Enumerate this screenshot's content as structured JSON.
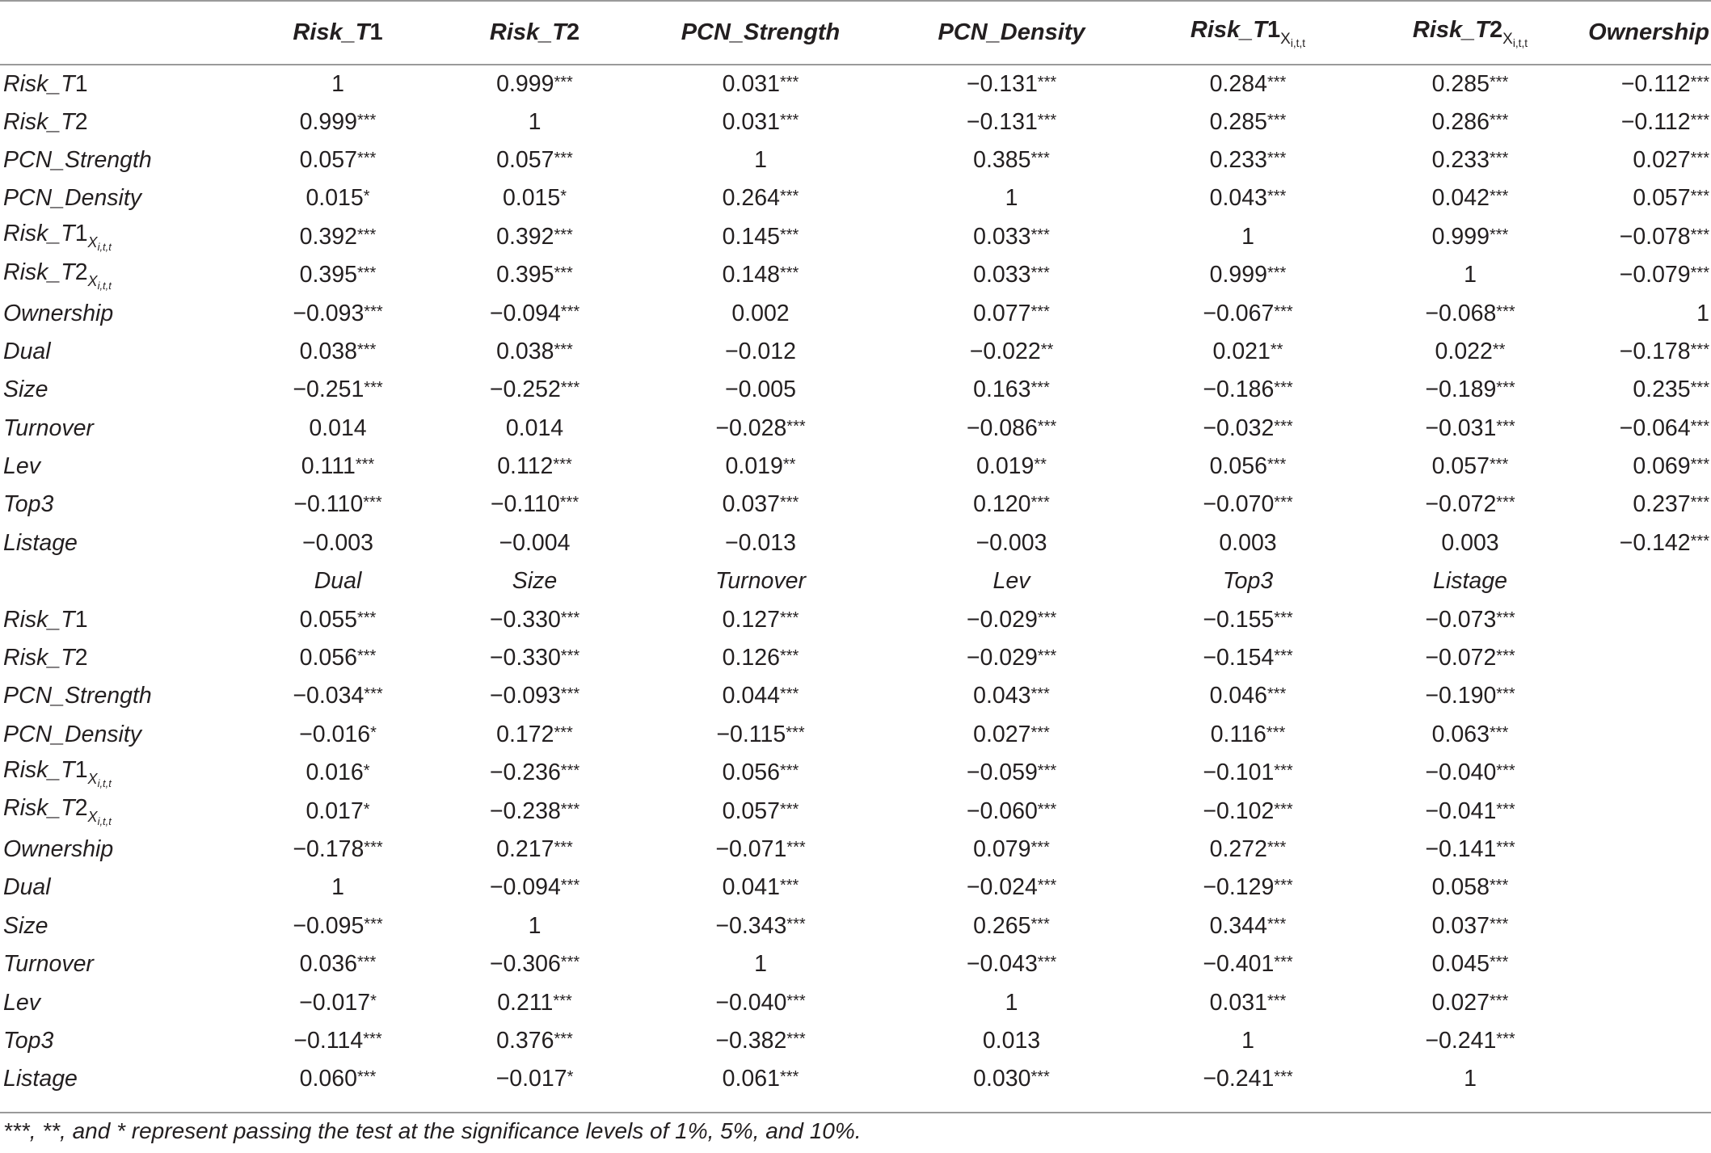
{
  "table": {
    "headers": [
      "",
      "Risk_T1",
      "Risk_T2",
      "PCN_Strength",
      "PCN_Density",
      "Risk_T1X",
      "Risk_T2X",
      "Ownership"
    ],
    "header_subscript": "i,t,t",
    "row_subscript": "i,t,t",
    "rows": [
      [
        "Risk_T1",
        "1",
        "0.999***",
        "0.031***",
        "−0.131***",
        "0.284***",
        "0.285***",
        "−0.112***"
      ],
      [
        "Risk_T2",
        "0.999***",
        "1",
        "0.031***",
        "−0.131***",
        "0.285***",
        "0.286***",
        "−0.112***"
      ],
      [
        "PCN_Strength",
        "0.057***",
        "0.057***",
        "1",
        "0.385***",
        "0.233***",
        "0.233***",
        "0.027***"
      ],
      [
        "PCN_Density",
        "0.015*",
        "0.015*",
        "0.264***",
        "1",
        "0.043***",
        "0.042***",
        "0.057***"
      ],
      [
        "Risk_T1X",
        "0.392***",
        "0.392***",
        "0.145***",
        "0.033***",
        "1",
        "0.999***",
        "−0.078***"
      ],
      [
        "Risk_T2X",
        "0.395***",
        "0.395***",
        "0.148***",
        "0.033***",
        "0.999***",
        "1",
        "−0.079***"
      ],
      [
        "Ownership",
        "−0.093***",
        "−0.094***",
        "0.002",
        "0.077***",
        "−0.067***",
        "−0.068***",
        "1"
      ],
      [
        "Dual",
        "0.038***",
        "0.038***",
        "−0.012",
        "−0.022**",
        "0.021**",
        "0.022**",
        "−0.178***"
      ],
      [
        "Size",
        "−0.251***",
        "−0.252***",
        "−0.005",
        "0.163***",
        "−0.186***",
        "−0.189***",
        "0.235***"
      ],
      [
        "Turnover",
        "0.014",
        "0.014",
        "−0.028***",
        "−0.086***",
        "−0.032***",
        "−0.031***",
        "−0.064***"
      ],
      [
        "Lev",
        "0.111***",
        "0.112***",
        "0.019**",
        "0.019**",
        "0.056***",
        "0.057***",
        "0.069***"
      ],
      [
        "Top3",
        "−0.110***",
        "−0.110***",
        "0.037***",
        "0.120***",
        "−0.070***",
        "−0.072***",
        "0.237***"
      ],
      [
        "Listage",
        "−0.003",
        "−0.004",
        "−0.013",
        "−0.003",
        "0.003",
        "0.003",
        "−0.142***"
      ]
    ],
    "subheaders": [
      "",
      "Dual",
      "Size",
      "Turnover",
      "Lev",
      "Top3",
      "Listage",
      ""
    ],
    "rows2": [
      [
        "Risk_T1",
        "0.055***",
        "−0.330***",
        "0.127***",
        "−0.029***",
        "−0.155***",
        "−0.073***",
        ""
      ],
      [
        "Risk_T2",
        "0.056***",
        "−0.330***",
        "0.126***",
        "−0.029***",
        "−0.154***",
        "−0.072***",
        ""
      ],
      [
        "PCN_Strength",
        "−0.034***",
        "−0.093***",
        "0.044***",
        "0.043***",
        "0.046***",
        "−0.190***",
        ""
      ],
      [
        "PCN_Density",
        "−0.016*",
        "0.172***",
        "−0.115***",
        "0.027***",
        "0.116***",
        "0.063***",
        ""
      ],
      [
        "Risk_T1X",
        "0.016*",
        "−0.236***",
        "0.056***",
        "−0.059***",
        "−0.101***",
        "−0.040***",
        ""
      ],
      [
        "Risk_T2X",
        "0.017*",
        "−0.238***",
        "0.057***",
        "−0.060***",
        "−0.102***",
        "−0.041***",
        ""
      ],
      [
        "Ownership",
        "−0.178***",
        "0.217***",
        "−0.071***",
        "0.079***",
        "0.272***",
        "−0.141***",
        ""
      ],
      [
        "Dual",
        "1",
        "−0.094***",
        "0.041***",
        "−0.024***",
        "−0.129***",
        "0.058***",
        ""
      ],
      [
        "Size",
        "−0.095***",
        "1",
        "−0.343***",
        "0.265***",
        "0.344***",
        "0.037***",
        ""
      ],
      [
        "Turnover",
        "0.036***",
        "−0.306***",
        "1",
        "−0.043***",
        "−0.401***",
        "0.045***",
        ""
      ],
      [
        "Lev",
        "−0.017*",
        "0.211***",
        "−0.040***",
        "1",
        "0.031***",
        "0.027***",
        ""
      ],
      [
        "Top3",
        "−0.114***",
        "0.376***",
        "−0.382***",
        "0.013",
        "1",
        "−0.241***",
        ""
      ],
      [
        "Listage",
        "0.060***",
        "−0.017*",
        "0.061***",
        "0.030***",
        "−0.241***",
        "1",
        ""
      ]
    ]
  },
  "footnote": "***, **, and * represent passing the test at the significance levels of 1%, 5%, and 10%."
}
